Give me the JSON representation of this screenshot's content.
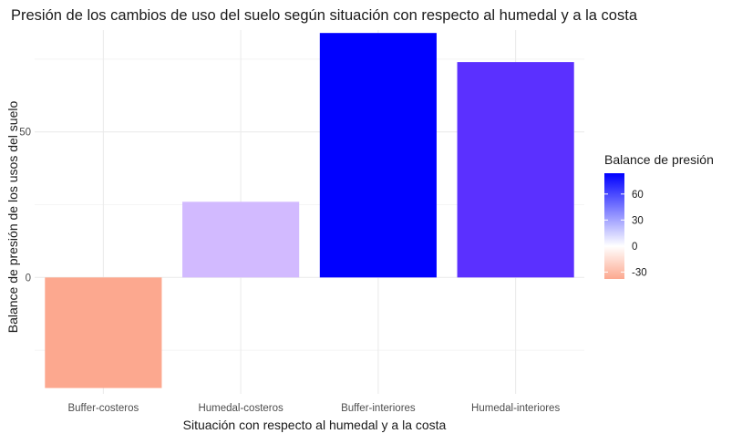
{
  "chart_data": {
    "type": "bar",
    "title": "Presión de los cambios de uso del suelo según situación con respecto al humedal y a la costa",
    "xlabel": "Situación con respecto al humedal y a la costa",
    "ylabel": "Balance de presión de los usos del suelo",
    "categories": [
      "Buffer-costeros",
      "Humedal-costeros",
      "Buffer-interiores",
      "Humedal-interiores"
    ],
    "values": [
      -38,
      26,
      84,
      74
    ],
    "ylim": [
      -40,
      85
    ],
    "yticks": [
      0,
      50
    ],
    "grid": true,
    "colors": [
      "#fca88f",
      "#d2baff",
      "#0000ff",
      "#5b30ff"
    ],
    "legend": {
      "title": "Balance de presión",
      "position": "right",
      "ticks": [
        -30,
        0,
        30,
        60
      ],
      "range": [
        -38,
        84
      ],
      "gradient": {
        "low": "#fca88f",
        "mid": "#ffffff",
        "high": "#0000ff"
      }
    }
  }
}
